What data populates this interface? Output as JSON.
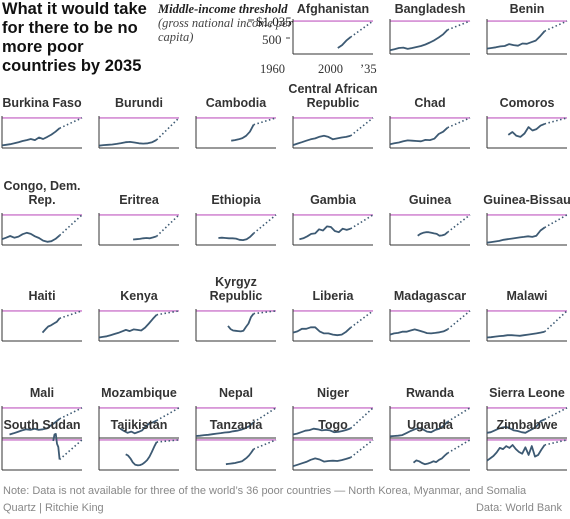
{
  "title": "What it would take for there to be no more poor countries by 2035",
  "legend": {
    "label_bold": "Middle-income threshold",
    "label_rest": "(gross national income per capita)",
    "threshold_value": "$1,035",
    "tick_500": "500",
    "year_start": "1960",
    "year_mid": "2000",
    "year_end": "’35"
  },
  "footer": {
    "note": "Note: Data is not available for three of the world’s 36 poor countries — North Korea, Myanmar, and Somalia",
    "credit": "Quartz | Ritchie King",
    "source": "Data: World Bank"
  },
  "colors": {
    "threshold": "#cc77cc",
    "line": "#3d5a73",
    "axis": "#333333"
  },
  "chart_data": {
    "type": "line",
    "threshold": 1035,
    "xlim": [
      1960,
      2035
    ],
    "ylim": [
      0,
      1100
    ],
    "countries": [
      {
        "name": "Afghanistan",
        "start": 2002,
        "hist": [
          190,
          280,
          420,
          530
        ],
        "proj": true
      },
      {
        "name": "Bangladesh",
        "start": 1960,
        "hist": [
          120,
          150,
          190,
          200,
          160,
          190,
          220,
          250,
          300,
          360,
          430,
          520,
          620,
          760
        ],
        "proj": true
      },
      {
        "name": "Benin",
        "start": 1960,
        "hist": [
          170,
          190,
          210,
          240,
          250,
          310,
          280,
          260,
          330,
          320,
          370,
          420,
          560,
          720
        ],
        "proj": true
      },
      {
        "name": "Burkina Faso",
        "start": 1960,
        "hist": [
          90,
          110,
          130,
          160,
          200,
          240,
          270,
          310,
          270,
          360,
          310,
          380,
          460,
          560,
          680
        ],
        "proj": true
      },
      {
        "name": "Burundi",
        "start": 1960,
        "hist": [
          80,
          100,
          110,
          120,
          140,
          170,
          200,
          210,
          190,
          160,
          150,
          160,
          200,
          280
        ],
        "proj": true
      },
      {
        "name": "Cambodia",
        "start": 1993,
        "hist": [
          250,
          270,
          300,
          340,
          420,
          560,
          800
        ],
        "proj": true
      },
      {
        "name": "Central African Republic",
        "start": 1960,
        "hist": [
          100,
          150,
          200,
          250,
          300,
          330,
          390,
          420,
          380,
          300,
          330,
          360,
          380,
          420
        ],
        "proj": true
      },
      {
        "name": "Chad",
        "start": 1960,
        "hist": [
          130,
          160,
          190,
          230,
          260,
          250,
          240,
          230,
          280,
          270,
          320,
          480,
          560,
          700
        ],
        "proj": true
      },
      {
        "name": "Comoros",
        "start": 1980,
        "hist": [
          450,
          550,
          420,
          380,
          500,
          720,
          600,
          650,
          770,
          830
        ],
        "proj": true
      },
      {
        "name": "Congo, Dem. Rep.",
        "start": 1960,
        "hist": [
          200,
          250,
          310,
          250,
          290,
          370,
          420,
          380,
          300,
          240,
          150,
          110,
          130,
          210,
          330
        ],
        "proj": true
      },
      {
        "name": "Eritrea",
        "start": 1992,
        "hist": [
          190,
          200,
          210,
          230,
          240,
          230,
          260,
          300
        ],
        "proj": true
      },
      {
        "name": "Ethiopia",
        "start": 1981,
        "hist": [
          240,
          250,
          240,
          230,
          230,
          220,
          180,
          170,
          200,
          280,
          400
        ],
        "proj": true
      },
      {
        "name": "Gambia",
        "start": 1966,
        "hist": [
          200,
          230,
          300,
          380,
          400,
          540,
          500,
          640,
          620,
          480,
          440,
          560,
          520,
          560
        ],
        "proj": true
      },
      {
        "name": "Guinea",
        "start": 1986,
        "hist": [
          320,
          380,
          420,
          440,
          440,
          420,
          400,
          380,
          320,
          330,
          360,
          440
        ],
        "proj": true
      },
      {
        "name": "Guinea-Bissau",
        "start": 1960,
        "hist": [
          80,
          100,
          120,
          140,
          180,
          200,
          220,
          240,
          260,
          280,
          300,
          280,
          320,
          500,
          600
        ],
        "proj": true
      },
      {
        "name": "Haiti",
        "start": 1998,
        "hist": [
          290,
          400,
          500,
          540,
          600,
          660,
          780
        ],
        "proj": true
      },
      {
        "name": "Kenya",
        "start": 1960,
        "hist": [
          120,
          140,
          160,
          200,
          240,
          280,
          330,
          380,
          340,
          400,
          380,
          360,
          460,
          600,
          760,
          900
        ],
        "proj": true
      },
      {
        "name": "Kyrgyz Republic",
        "start": 1990,
        "hist": [
          520,
          410,
          360,
          350,
          340,
          330,
          350,
          480,
          600,
          820,
          940
        ],
        "proj": true
      },
      {
        "name": "Liberia",
        "start": 1960,
        "hist": [
          290,
          330,
          420,
          420,
          470,
          470,
          330,
          260,
          260,
          220,
          200,
          220,
          320,
          460
        ],
        "proj": true
      },
      {
        "name": "Madagascar",
        "start": 1960,
        "hist": [
          220,
          260,
          280,
          320,
          320,
          360,
          400,
          360,
          320,
          270,
          260,
          280,
          300,
          330,
          400
        ],
        "proj": true
      },
      {
        "name": "Malawi",
        "start": 1960,
        "hist": [
          120,
          130,
          150,
          170,
          180,
          200,
          200,
          190,
          180,
          200,
          220,
          240,
          260,
          290,
          320
        ],
        "proj": true
      },
      {
        "name": "Mali",
        "start": 1967,
        "hist": [
          120,
          160,
          210,
          260,
          300,
          280,
          320,
          280,
          300,
          330,
          440,
          540,
          660
        ],
        "proj": true
      },
      {
        "name": "Mozambique",
        "start": 1980,
        "hist": [
          320,
          240,
          180,
          220,
          160,
          210,
          260,
          400,
          500,
          540,
          600
        ],
        "proj": true
      },
      {
        "name": "Nepal",
        "start": 1960,
        "hist": [
          70,
          80,
          100,
          110,
          130,
          150,
          170,
          190,
          200,
          230,
          250,
          290,
          340,
          410,
          540
        ],
        "proj": true
      },
      {
        "name": "Niger",
        "start": 1960,
        "hist": [
          120,
          150,
          200,
          250,
          270,
          320,
          300,
          260,
          280,
          260,
          200,
          210,
          240,
          280,
          330
        ],
        "proj": true
      },
      {
        "name": "Rwanda",
        "start": 1960,
        "hist": [
          60,
          70,
          80,
          100,
          170,
          240,
          300,
          340,
          300,
          220,
          200,
          280,
          320,
          420,
          560
        ],
        "proj": true
      },
      {
        "name": "Sierra Leone",
        "start": 1960,
        "hist": [
          180,
          200,
          260,
          320,
          360,
          380,
          330,
          260,
          240,
          200,
          180,
          250,
          320,
          420,
          580,
          640
        ],
        "proj": true
      },
      {
        "name": "South Sudan",
        "start": 2008,
        "hist": [
          1000,
          1220,
          1240,
          900,
          790,
          360
        ],
        "proj": true
      },
      {
        "name": "Tajikistan",
        "start": 1985,
        "hist": [
          540,
          500,
          400,
          260,
          180,
          160,
          170,
          200,
          260,
          340,
          460,
          620,
          800,
          960
        ],
        "proj": true
      },
      {
        "name": "Tanzania",
        "start": 1988,
        "hist": [
          200,
          210,
          220,
          230,
          240,
          260,
          280,
          300,
          360,
          420,
          500,
          600,
          720
        ],
        "proj": true
      },
      {
        "name": "Togo",
        "start": 1960,
        "hist": [
          130,
          180,
          230,
          280,
          350,
          400,
          360,
          290,
          310,
          320,
          310,
          340,
          380,
          430
        ],
        "proj": true
      },
      {
        "name": "Uganda",
        "start": 1982,
        "hist": [
          250,
          330,
          300,
          240,
          200,
          220,
          250,
          300,
          270,
          350,
          400,
          500,
          580
        ],
        "proj": true
      },
      {
        "name": "Zimbabwe",
        "start": 1960,
        "hist": [
          320,
          400,
          480,
          600,
          760,
          720,
          820,
          760,
          860,
          720,
          620,
          560,
          780,
          520,
          820,
          460,
          520,
          700,
          860
        ],
        "proj": true
      }
    ]
  }
}
